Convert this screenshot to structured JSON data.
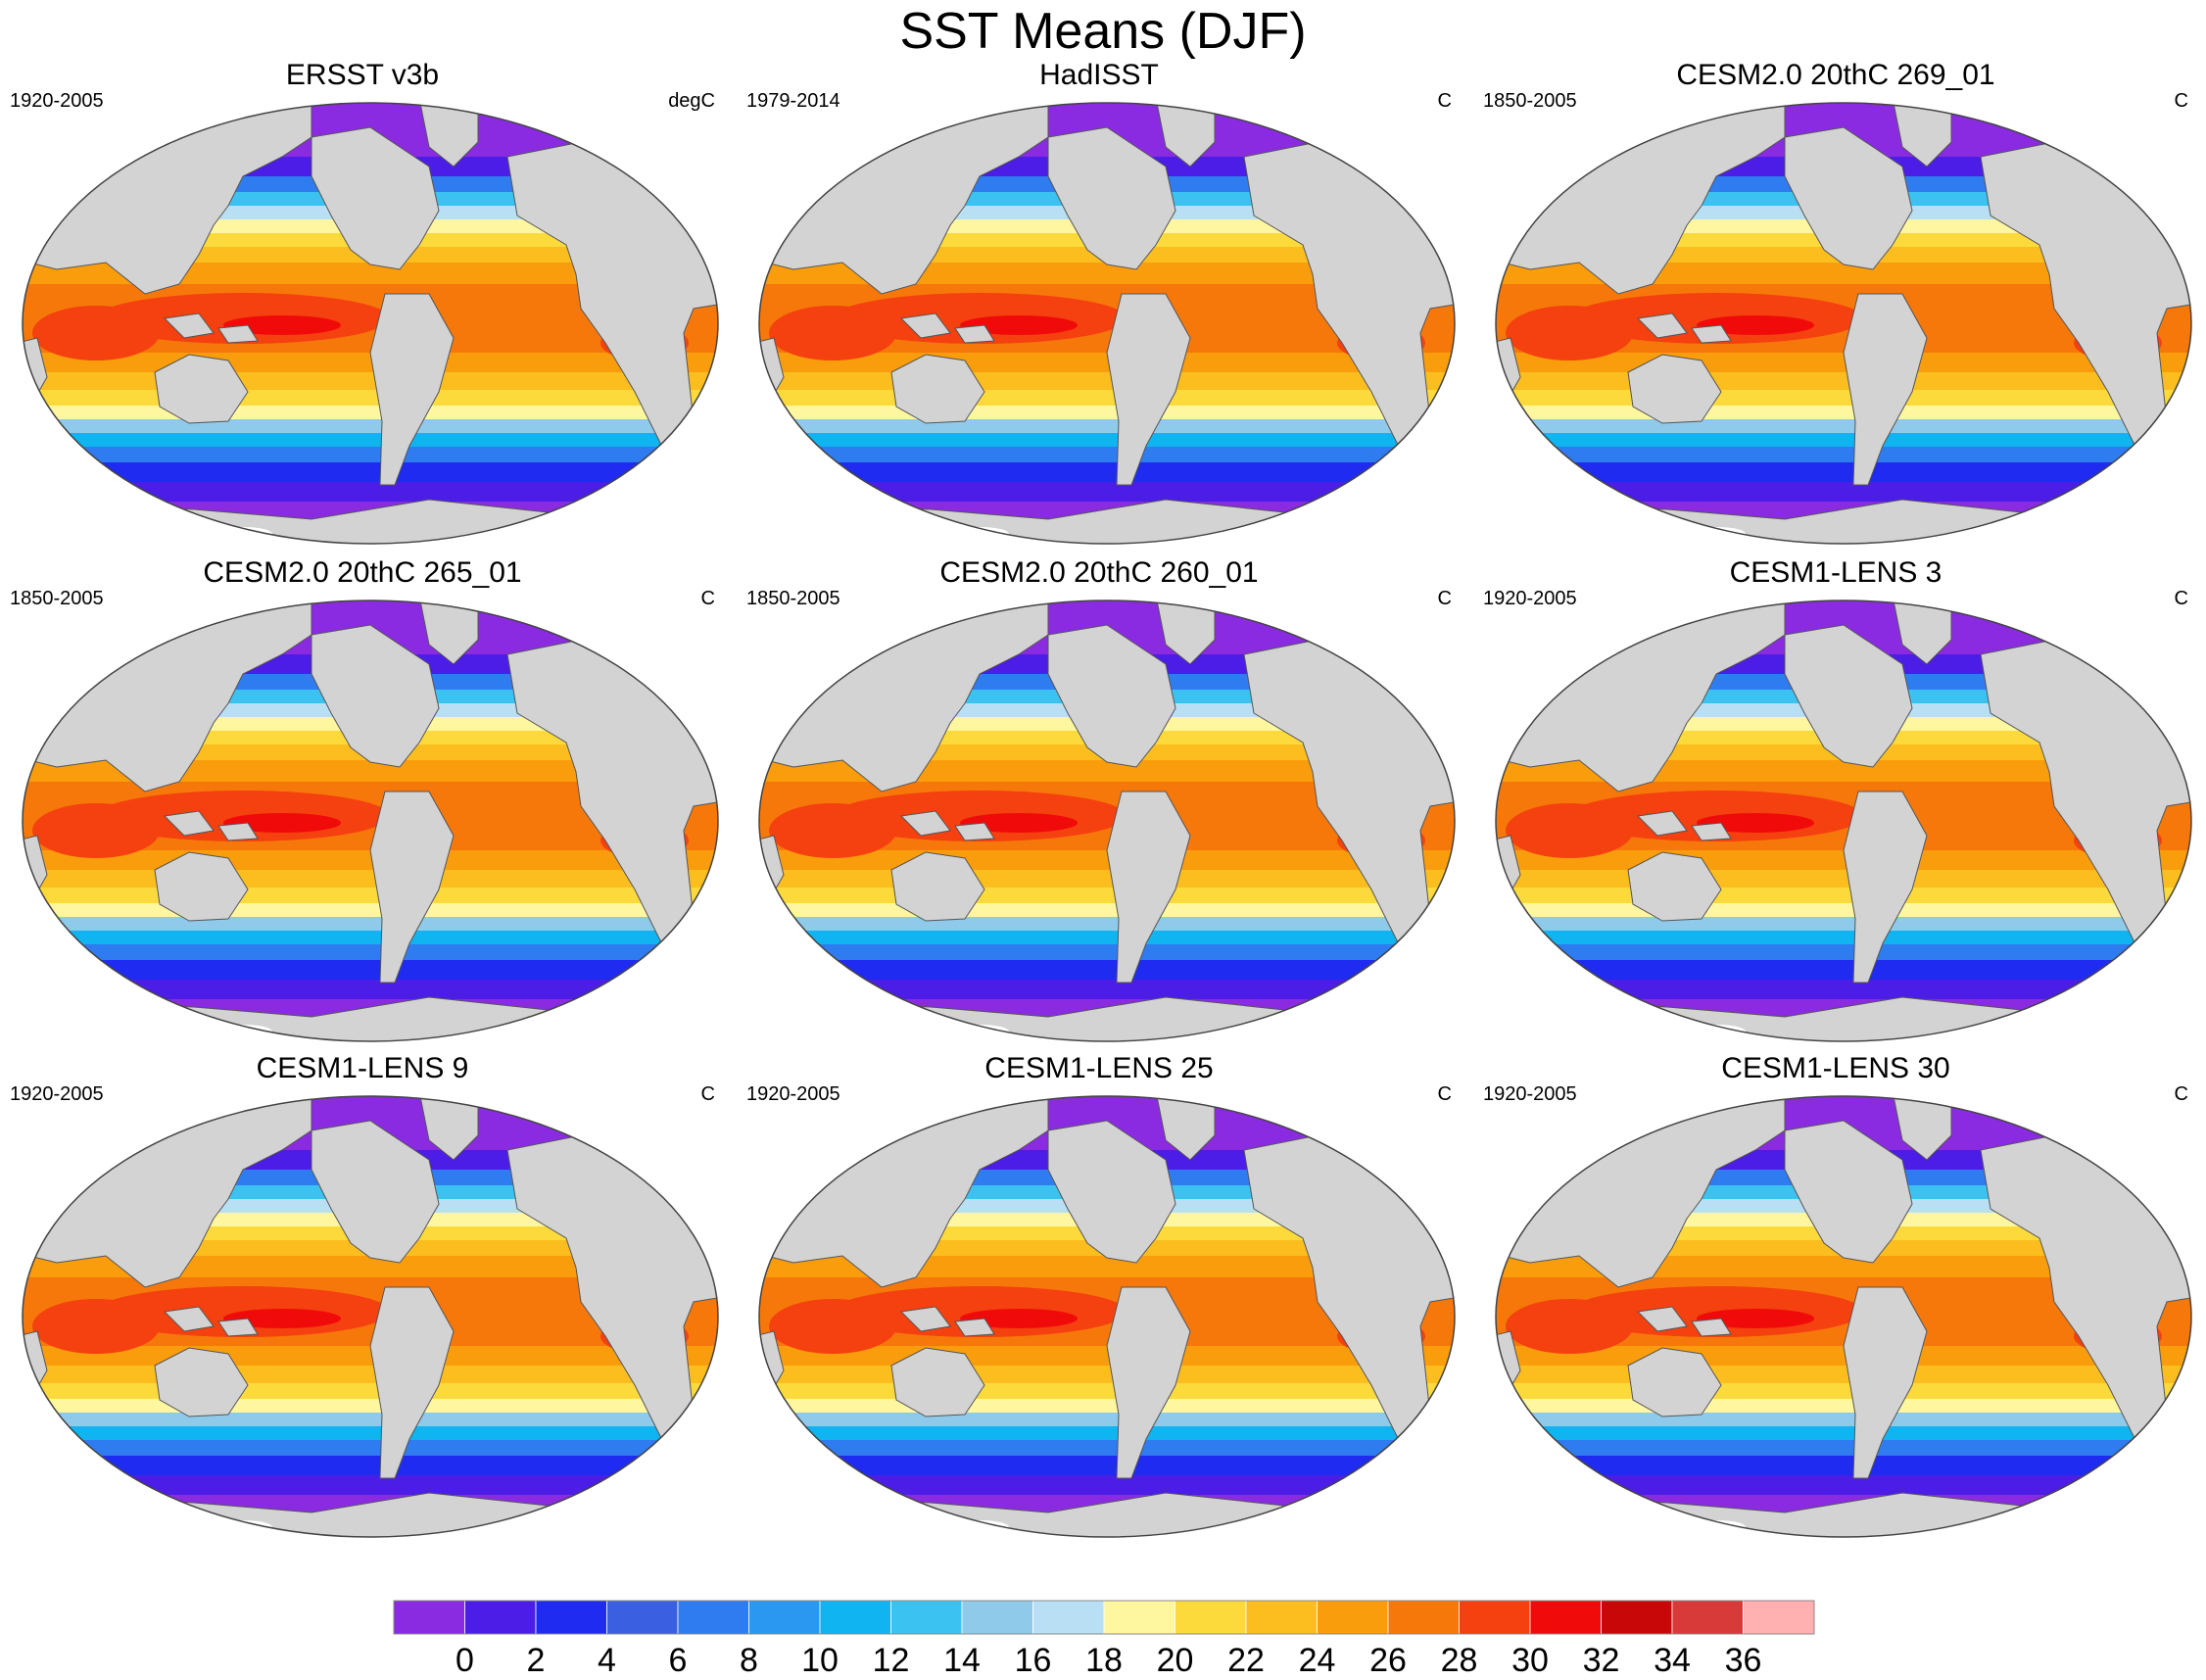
{
  "title": "SST Means (DJF)",
  "panels": [
    {
      "title": "ERSST v3b",
      "period": "1920-2005",
      "units": "degC"
    },
    {
      "title": "HadISST",
      "period": "1979-2014",
      "units": "C"
    },
    {
      "title": "CESM2.0 20thC 269_01",
      "period": "1850-2005",
      "units": "C"
    },
    {
      "title": "CESM2.0 20thC 265_01",
      "period": "1850-2005",
      "units": "C"
    },
    {
      "title": "CESM2.0 20thC 260_01",
      "period": "1850-2005",
      "units": "C"
    },
    {
      "title": "CESM1-LENS 3",
      "period": "1920-2005",
      "units": "C"
    },
    {
      "title": "CESM1-LENS 9",
      "period": "1920-2005",
      "units": "C"
    },
    {
      "title": "CESM1-LENS 25",
      "period": "1920-2005",
      "units": "C"
    },
    {
      "title": "CESM1-LENS 30",
      "period": "1920-2005",
      "units": "C"
    }
  ],
  "colorbar": {
    "labels": [
      "0",
      "2",
      "4",
      "6",
      "8",
      "10",
      "12",
      "14",
      "16",
      "18",
      "20",
      "22",
      "24",
      "26",
      "28",
      "30",
      "32",
      "34",
      "36"
    ],
    "colors": [
      "#8a2be2",
      "#4b1de6",
      "#1f2bf0",
      "#3a5fe0",
      "#2f7bf0",
      "#2a97f0",
      "#10b4f0",
      "#3cc2f0",
      "#8fcaea",
      "#b8dff4",
      "#fff6a0",
      "#fdda3c",
      "#fbbe1e",
      "#fa9d0c",
      "#f7780a",
      "#f5400f",
      "#f00a0a",
      "#c80808",
      "#d83a3a",
      "#ffb0b0"
    ]
  },
  "land_color": "#d3d3d3",
  "ice_color": "#ffffff"
}
